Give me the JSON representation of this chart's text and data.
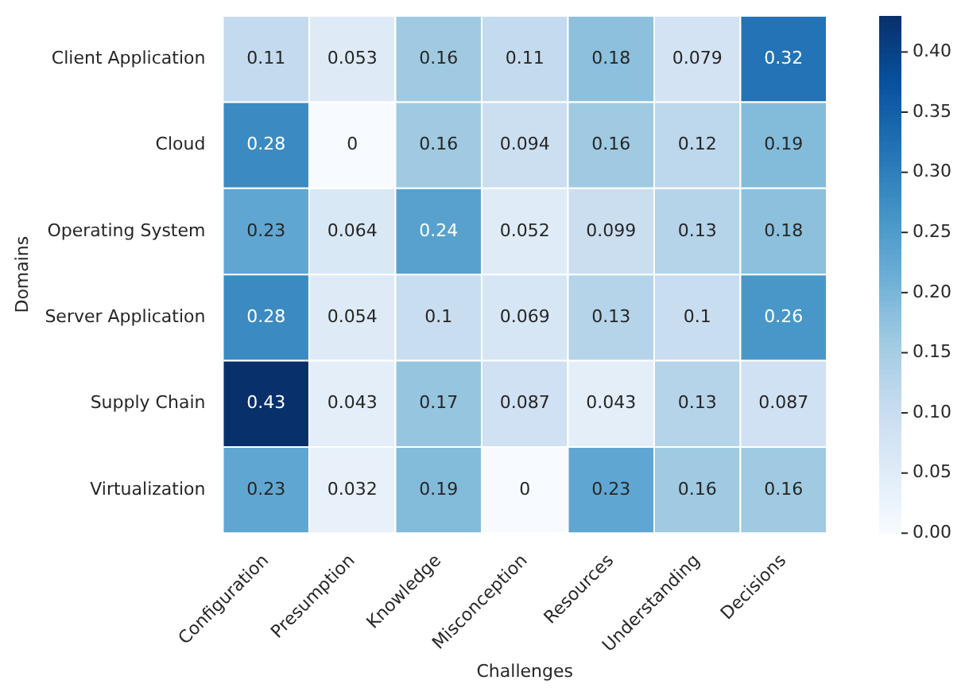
{
  "chart_data": {
    "type": "heatmap",
    "xlabel": "Challenges",
    "ylabel": "Domains",
    "categories": [
      "Configuration",
      "Presumption",
      "Knowledge",
      "Misconception",
      "Resources",
      "Understanding",
      "Decisions"
    ],
    "y_categories": [
      "Client Application",
      "Cloud",
      "Operating System",
      "Server Application",
      "Supply Chain",
      "Virtualization"
    ],
    "cells": [
      [
        0.11,
        0.053,
        0.16,
        0.11,
        0.18,
        0.079,
        0.32
      ],
      [
        0.28,
        0,
        0.16,
        0.094,
        0.16,
        0.12,
        0.19
      ],
      [
        0.23,
        0.064,
        0.24,
        0.052,
        0.099,
        0.13,
        0.18
      ],
      [
        0.28,
        0.054,
        0.1,
        0.069,
        0.13,
        0.1,
        0.26
      ],
      [
        0.43,
        0.043,
        0.17,
        0.087,
        0.043,
        0.13,
        0.087
      ],
      [
        0.23,
        0.032,
        0.19,
        0,
        0.23,
        0.16,
        0.16
      ]
    ],
    "data_labels": true,
    "clim": [
      0,
      0.43
    ],
    "cticks": [
      {
        "value": 0,
        "label": "0.00"
      },
      {
        "value": 0.05,
        "label": "0.05"
      },
      {
        "value": 0.1,
        "label": "0.10"
      },
      {
        "value": 0.15,
        "label": "0.15"
      },
      {
        "value": 0.2,
        "label": "0.20"
      },
      {
        "value": 0.25,
        "label": "0.25"
      },
      {
        "value": 0.3,
        "label": "0.30"
      },
      {
        "value": 0.35,
        "label": "0.35"
      },
      {
        "value": 0.4,
        "label": "0.40"
      }
    ]
  }
}
